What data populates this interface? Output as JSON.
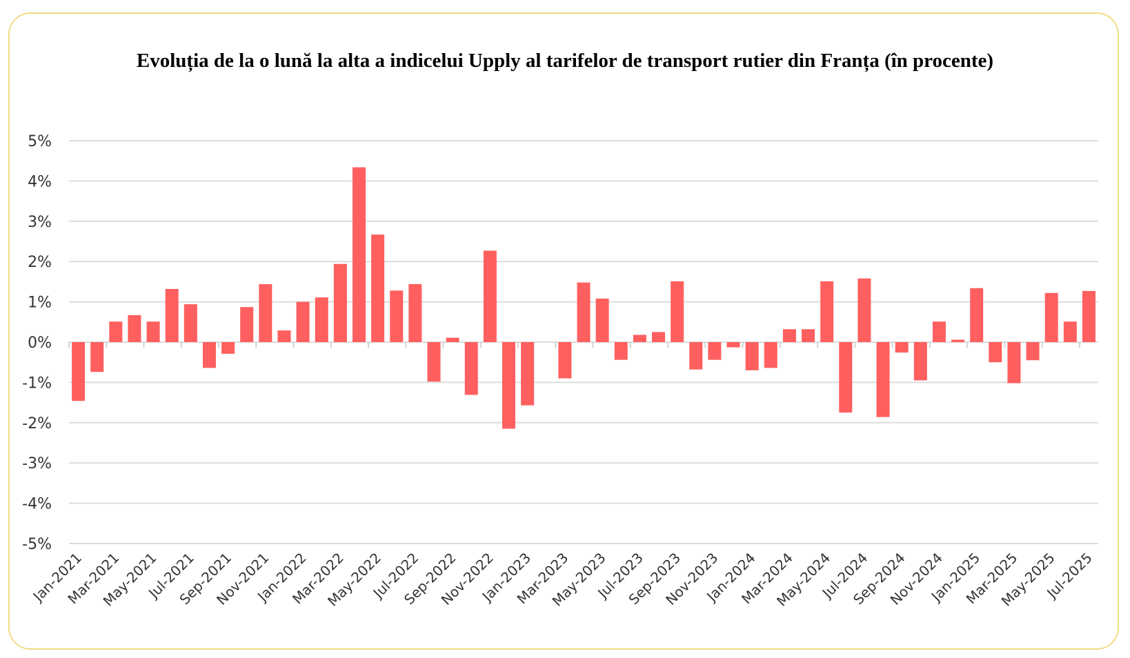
{
  "chart_data": {
    "type": "bar",
    "title": "Evoluția de la o lună la alta a indicelui Upply al tarifelor de transport rutier din Franța (în procente)",
    "xlabel": "",
    "ylabel": "",
    "ylim": [
      -5,
      5
    ],
    "yticks": [
      "-5%",
      "-4%",
      "-3%",
      "-2%",
      "-1%",
      "0%",
      "1%",
      "2%",
      "3%",
      "4%",
      "5%"
    ],
    "grid": true,
    "bar_color": "#ff5f5f",
    "categories": [
      "Jan-2021",
      "Feb-2021",
      "Mar-2021",
      "Apr-2021",
      "May-2021",
      "Jun-2021",
      "Jul-2021",
      "Aug-2021",
      "Sep-2021",
      "Oct-2021",
      "Nov-2021",
      "Dec-2021",
      "Jan-2022",
      "Feb-2022",
      "Mar-2022",
      "Apr-2022",
      "May-2022",
      "Jun-2022",
      "Jul-2022",
      "Aug-2022",
      "Sep-2022",
      "Oct-2022",
      "Nov-2022",
      "Dec-2022",
      "Jan-2023",
      "Feb-2023",
      "Mar-2023",
      "Apr-2023",
      "May-2023",
      "Jun-2023",
      "Jul-2023",
      "Aug-2023",
      "Sep-2023",
      "Oct-2023",
      "Nov-2023",
      "Dec-2023",
      "Jan-2024",
      "Feb-2024",
      "Mar-2024",
      "Apr-2024",
      "May-2024",
      "Jun-2024",
      "Jul-2024",
      "Aug-2024",
      "Sep-2024",
      "Oct-2024",
      "Nov-2024",
      "Dec-2024",
      "Jan-2025",
      "Feb-2025",
      "Mar-2025",
      "Apr-2025",
      "May-2025",
      "Jun-2025",
      "Jul-2025"
    ],
    "values": [
      -1.46,
      -0.74,
      0.51,
      0.67,
      0.51,
      1.32,
      0.94,
      -0.64,
      -0.29,
      0.87,
      1.44,
      0.29,
      1.0,
      1.11,
      1.94,
      4.34,
      2.67,
      1.28,
      1.44,
      -0.98,
      0.11,
      -1.31,
      2.27,
      -2.15,
      -1.57,
      0.0,
      -0.9,
      1.48,
      1.08,
      -0.44,
      0.18,
      0.25,
      1.51,
      -0.68,
      -0.44,
      -0.13,
      -0.7,
      -0.64,
      0.32,
      0.32,
      1.51,
      -1.75,
      1.58,
      -1.86,
      -0.26,
      -0.95,
      0.51,
      0.06,
      1.34,
      -0.5,
      -1.02,
      -0.45,
      1.22,
      0.51,
      1.27
    ]
  }
}
